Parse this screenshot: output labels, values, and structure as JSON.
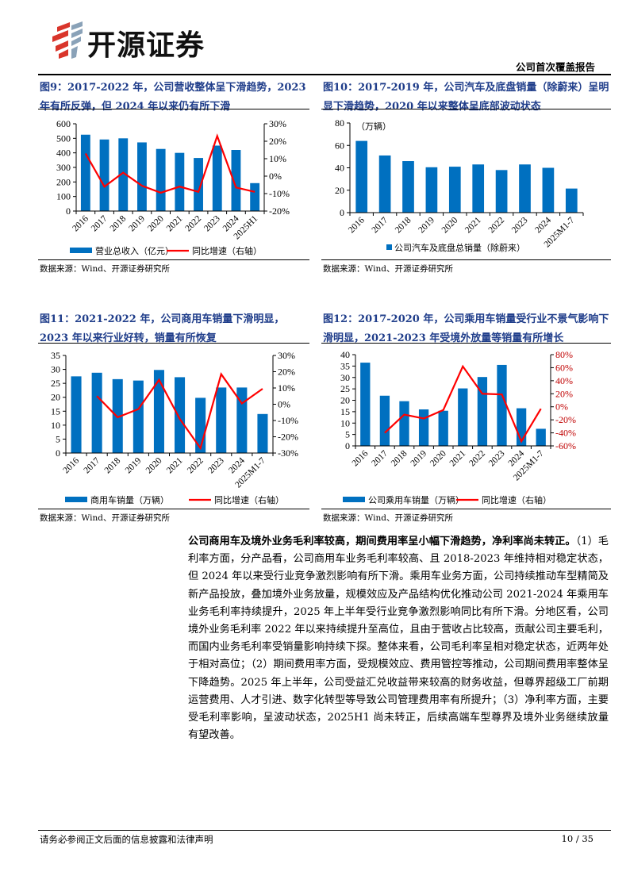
{
  "header": {
    "logo_text": "开源证券",
    "report_type": "公司首次覆盖报告"
  },
  "figures": [
    {
      "title": "图9：2017-2022 年，公司营收整体呈下滑趋势，2023 年有所反弹，但 2024 年以来仍有所下滑",
      "source": "数据来源：Wind、开源证券研究所"
    },
    {
      "title": "图10：2017-2019 年，公司汽车及底盘销量（除蔚来）呈明显下滑趋势，2020 年以来整体呈底部波动状态",
      "source": "数据来源：Wind、开源证券研究所"
    },
    {
      "title": "图11：2021-2022 年，公司商用车销量下滑明显，2023 年以来行业好转，销量有所恢复",
      "source": "数据来源：Wind、开源证券研究所"
    },
    {
      "title": "图12：2017-2020 年，公司乘用车销量受行业不景气影响下滑明显，2021-2023 年受境外放量等销量有所增长",
      "source": "数据来源：Wind、开源证券研究所"
    }
  ],
  "chart_data": [
    {
      "type": "bar+line",
      "categories": [
        "2016",
        "2017",
        "2018",
        "2019",
        "2020",
        "2021",
        "2022",
        "2023",
        "2024",
        "2025H1"
      ],
      "series": [
        {
          "name": "营业总收入（亿元）",
          "type": "bar",
          "axis": "left",
          "values": [
            525,
            492,
            500,
            472,
            427,
            400,
            365,
            450,
            420,
            192
          ]
        },
        {
          "name": "同比增速（右轴）",
          "type": "line",
          "axis": "right",
          "values": [
            13,
            -6,
            2,
            -5.5,
            -9.5,
            -6,
            -9,
            23,
            -6.5,
            -9
          ]
        }
      ],
      "ylim": [
        0,
        600
      ],
      "yticks": [
        0,
        100,
        200,
        300,
        400,
        500,
        600
      ],
      "y2lim": [
        -20,
        30
      ],
      "y2ticks": [
        "-20%",
        "-10%",
        "0%",
        "10%",
        "20%",
        "30%"
      ],
      "unit": "",
      "legend": "bottom",
      "colors": {
        "bar": "#0070c0",
        "line": "#ff0000"
      }
    },
    {
      "type": "bar",
      "categories": [
        "2016",
        "2017",
        "2018",
        "2019",
        "2020",
        "2021",
        "2022",
        "2023",
        "2024",
        "2025M1-7"
      ],
      "series": [
        {
          "name": "公司汽车及底盘总销量（除蔚来）",
          "type": "bar",
          "axis": "left",
          "values": [
            64,
            51,
            46,
            40.5,
            41,
            43,
            38,
            43,
            40,
            21.5
          ]
        }
      ],
      "ylim": [
        0,
        80
      ],
      "yticks": [
        0,
        20,
        40,
        60,
        80
      ],
      "unit": "（万辆）",
      "legend": "bottom",
      "colors": {
        "bar": "#0070c0"
      }
    },
    {
      "type": "bar+line",
      "categories": [
        "2016",
        "2017",
        "2018",
        "2019",
        "2020",
        "2021",
        "2022",
        "2023",
        "2024",
        "2025M1-7"
      ],
      "series": [
        {
          "name": "商用车销量（万辆）",
          "type": "bar",
          "axis": "left",
          "values": [
            27.5,
            28.8,
            26.5,
            26,
            29.8,
            27.2,
            19.8,
            23.5,
            23.5,
            14
          ]
        },
        {
          "name": "同比增速（右轴）",
          "type": "line",
          "axis": "right",
          "values": [
            null,
            5,
            -8,
            -3,
            15,
            -9,
            -27,
            18.5,
            0.5,
            9.5
          ]
        }
      ],
      "ylim": [
        0,
        35
      ],
      "yticks": [
        0,
        5,
        10,
        15,
        20,
        25,
        30,
        35
      ],
      "y2lim": [
        -30,
        30
      ],
      "y2ticks": [
        "-30%",
        "-20%",
        "-10%",
        "0%",
        "10%",
        "20%",
        "30%"
      ],
      "unit": "",
      "legend": "bottom",
      "colors": {
        "bar": "#0070c0",
        "line": "#ff0000"
      }
    },
    {
      "type": "bar+line",
      "categories": [
        "2016",
        "2017",
        "2018",
        "2019",
        "2020",
        "2021",
        "2022",
        "2023",
        "2024",
        "2025M1-7"
      ],
      "series": [
        {
          "name": "公司乘用车销量（万辆）",
          "type": "bar",
          "axis": "left",
          "values": [
            36.5,
            22,
            19.6,
            16,
            15.4,
            25.2,
            30.2,
            35.5,
            16.5,
            7.5
          ]
        },
        {
          "name": "同比增速（右轴）",
          "type": "line",
          "axis": "right",
          "values": [
            null,
            -40,
            -12,
            -18,
            -5,
            62,
            20,
            19,
            -53,
            -3
          ]
        }
      ],
      "ylim": [
        0,
        40
      ],
      "yticks": [
        0,
        5,
        10,
        15,
        20,
        25,
        30,
        35,
        40
      ],
      "y2lim": [
        -60,
        80
      ],
      "y2ticks": [
        "-60%",
        "-40%",
        "-20%",
        "0%",
        "20%",
        "40%",
        "60%",
        "80%"
      ],
      "unit": "",
      "legend": "bottom",
      "colors": {
        "bar": "#0070c0",
        "line": "#ff0000",
        "y2_text": "#c00000"
      }
    }
  ],
  "body": {
    "lead": "公司商用车及境外业务毛利率较高，期间费用率呈小幅下滑趋势，净利率尚未转正。",
    "text": "（1）毛利率方面，分产品看，公司商用车业务毛利率较高、且 2018-2023 年维持相对稳定状态，但 2024 年以来受行业竞争激烈影响有所下滑。乘用车业务方面，公司持续推动车型精简及新产品投放，叠加境外业务放量，规模效应及产品结构优化推动公司 2021-2024 年乘用车业务毛利率持续提升，2025 年上半年受行业竞争激烈影响同比有所下滑。分地区看，公司境外业务毛利率 2022 年以来持续提升至高位，且由于营收占比较高，贡献公司主要毛利，而国内业务毛利率受销量影响持续下探。整体来看，公司毛利率呈相对稳定状态，近两年处于相对高位；（2）期间费用率方面，受规模效应、费用管控等推动，公司期间费用率整体呈下降趋势。2025 年上半年，公司受益汇兑收益带来较高的财务收益，但尊界超级工厂前期运营费用、人才引进、数字化转型等导致公司管理费用率有所提升；（3）净利率方面，主要受毛利率影响，呈波动状态，2025H1 尚未转正，后续高端车型尊界及境外业务继续放量有望改善。"
  },
  "footer": {
    "disclaimer": "请务必参阅正文后面的信息披露和法律声明",
    "page": "10 / 35"
  }
}
